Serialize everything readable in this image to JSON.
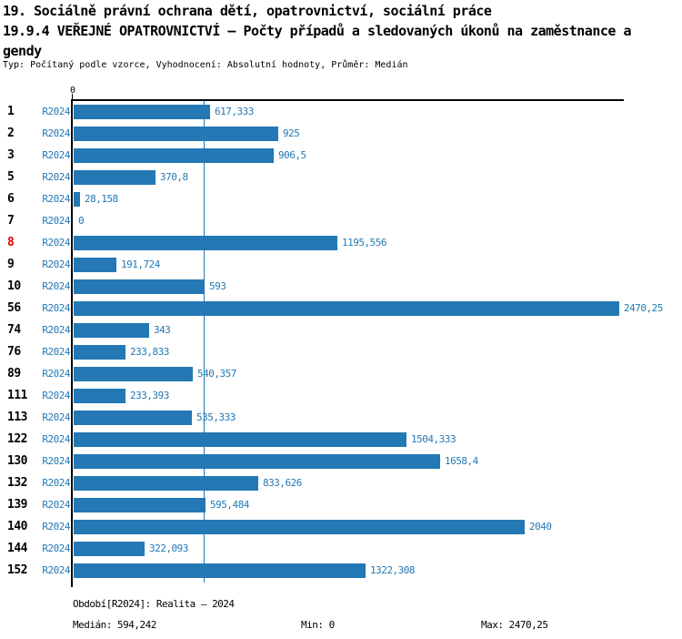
{
  "header": {
    "title_line1": "19. Sociálně právní ochrana dětí, opatrovnictví, sociální práce",
    "title_line2": "19.9.4 VEŘEJNÉ OPATROVNICTVÍ – Počty případů a sledovaných úkonů na zaměstnance a",
    "title_line3": "gendy",
    "subtitle": "Typ: Počítaný podle vzorce, Vyhodnocení: Absolutní hodnoty, Průměr: Medián"
  },
  "chart_data": {
    "type": "bar",
    "orientation": "horizontal",
    "series_label": "R2024",
    "categories": [
      "1",
      "2",
      "3",
      "5",
      "6",
      "7",
      "8",
      "9",
      "10",
      "56",
      "74",
      "76",
      "89",
      "111",
      "113",
      "122",
      "130",
      "132",
      "139",
      "140",
      "144",
      "152"
    ],
    "values": [
      617.333,
      925,
      906.5,
      370.8,
      28.158,
      0,
      1195.556,
      191.724,
      593,
      2470.25,
      343,
      233.833,
      540.357,
      233.393,
      535.333,
      1504.333,
      1658.4,
      833.626,
      595.484,
      2040,
      322.093,
      1322.308
    ],
    "value_labels": [
      "617,333",
      "925",
      "906,5",
      "370,8",
      "28,158",
      "0",
      "1195,556",
      "191,724",
      "593",
      "2470,25",
      "343",
      "233,833",
      "540,357",
      "233,393",
      "535,333",
      "1504,333",
      "1658,4",
      "833,626",
      "595,484",
      "2040",
      "322,093",
      "1322,308"
    ],
    "highlighted_category": "8",
    "x_tick_labels": [
      "0"
    ],
    "xlim": [
      0,
      2494
    ],
    "median_value": 594.242,
    "grid": false,
    "legend": false
  },
  "colors": {
    "bar_blue": "#2478b4",
    "label_blue": "#2478b4",
    "median_line_blue": "#2478b4",
    "highlight_red": "#e60000",
    "axis_black": "#000000"
  },
  "footer": {
    "period": "Období[R2024]: Realita – 2024",
    "median": "Medián: 594,242",
    "min": "Min: 0",
    "max": "Max: 2470,25"
  }
}
